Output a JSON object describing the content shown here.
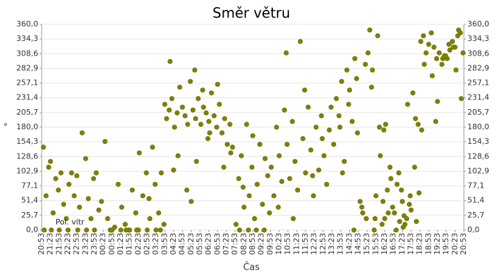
{
  "chart_data": {
    "type": "scatter",
    "title": "Směr větru",
    "x_label": "Čas",
    "y_label": "°",
    "grid": true,
    "xlim": [
      0,
      48
    ],
    "xticks": [
      {
        "value": 0,
        "label": "20:53"
      },
      {
        "value": 1,
        "label": "21:23"
      },
      {
        "value": 2,
        "label": "21:53"
      },
      {
        "value": 3,
        "label": "22:23"
      },
      {
        "value": 4,
        "label": "22:53"
      },
      {
        "value": 5,
        "label": "23:23"
      },
      {
        "value": 6,
        "label": "23:53"
      },
      {
        "value": 7,
        "label": "00:23"
      },
      {
        "value": 8,
        "label": "00:53"
      },
      {
        "value": 9,
        "label": "01:23"
      },
      {
        "value": 10,
        "label": "01:53"
      },
      {
        "value": 11,
        "label": "02:23"
      },
      {
        "value": 12,
        "label": "02:53"
      },
      {
        "value": 13,
        "label": "03:23"
      },
      {
        "value": 14,
        "label": "03:53"
      },
      {
        "value": 15,
        "label": "04:23"
      },
      {
        "value": 16,
        "label": "04:53"
      },
      {
        "value": 17,
        "label": "05:23"
      },
      {
        "value": 18,
        "label": "05:53"
      },
      {
        "value": 19,
        "label": "06:23"
      },
      {
        "value": 20,
        "label": "06:53"
      },
      {
        "value": 21,
        "label": "07:23"
      },
      {
        "value": 22,
        "label": "07:53"
      },
      {
        "value": 23,
        "label": "08:23"
      },
      {
        "value": 24,
        "label": "08:53"
      },
      {
        "value": 25,
        "label": "09:23"
      },
      {
        "value": 26,
        "label": "09:53"
      },
      {
        "value": 27,
        "label": "10:23"
      },
      {
        "value": 28,
        "label": "10:53"
      },
      {
        "value": 29,
        "label": "11:23"
      },
      {
        "value": 30,
        "label": "11:53"
      },
      {
        "value": 31,
        "label": "12:23"
      },
      {
        "value": 32,
        "label": "12:53"
      },
      {
        "value": 33,
        "label": "13:23"
      },
      {
        "value": 34,
        "label": "13:53"
      },
      {
        "value": 35,
        "label": "14:23"
      },
      {
        "value": 36,
        "label": "14:53"
      },
      {
        "value": 37,
        "label": "15:23"
      },
      {
        "value": 38,
        "label": "15:53"
      },
      {
        "value": 39,
        "label": "16:23"
      },
      {
        "value": 40,
        "label": "16:53"
      },
      {
        "value": 41,
        "label": "17:23"
      },
      {
        "value": 42,
        "label": "17:53"
      },
      {
        "value": 43,
        "label": "18:23"
      },
      {
        "value": 44,
        "label": "18:53"
      },
      {
        "value": 45,
        "label": "19:23"
      },
      {
        "value": 46,
        "label": "19:53"
      },
      {
        "value": 47,
        "label": "20:23"
      },
      {
        "value": 48,
        "label": "20:53"
      }
    ],
    "ylim": [
      0,
      360
    ],
    "yticks": [
      {
        "value": 0,
        "label": "0,0"
      },
      {
        "value": 25.7,
        "label": "25,7"
      },
      {
        "value": 51.4,
        "label": "51,4"
      },
      {
        "value": 77.1,
        "label": "77,1"
      },
      {
        "value": 102.9,
        "label": "102,9"
      },
      {
        "value": 128.6,
        "label": "128,6"
      },
      {
        "value": 154.3,
        "label": "154,3"
      },
      {
        "value": 180,
        "label": "180,0"
      },
      {
        "value": 205.7,
        "label": "205,7"
      },
      {
        "value": 231.4,
        "label": "231,4"
      },
      {
        "value": 257.1,
        "label": "257,1"
      },
      {
        "value": 282.9,
        "label": "282,9"
      },
      {
        "value": 308.6,
        "label": "308,6"
      },
      {
        "value": 334.3,
        "label": "334,3"
      },
      {
        "value": 360,
        "label": "360,0"
      }
    ],
    "x": [
      0.2,
      0.5,
      0.8,
      1.0,
      1.3,
      1.6,
      1.9,
      2.2,
      2.5,
      2.8,
      3.1,
      3.4,
      3.7,
      4.0,
      4.3,
      4.6,
      5.0,
      5.3,
      5.6,
      5.9,
      6.2,
      6.5,
      6.8,
      0.3,
      1.1,
      2.0,
      3.0,
      4.1,
      5.1,
      6.0,
      7.2,
      7.5,
      7.9,
      8.3,
      8.7,
      9.1,
      9.5,
      9.9,
      10.3,
      10.7,
      11.1,
      11.5,
      11.9,
      12.3,
      12.6,
      12.9,
      13.3,
      13.6,
      7.8,
      9.0,
      10.0,
      11.0,
      12.0,
      13.0,
      13.9,
      8.0,
      9.6,
      10.8,
      12.2,
      13.5,
      14.0,
      14.2,
      14.5,
      14.8,
      15.1,
      15.4,
      15.7,
      16.0,
      16.3,
      16.6,
      16.9,
      17.2,
      17.5,
      17.8,
      18.1,
      18.4,
      18.7,
      19.0,
      19.3,
      19.6,
      19.9,
      20.2,
      20.5,
      20.8,
      21.1,
      21.4,
      21.7,
      14.6,
      15.5,
      16.5,
      17.0,
      17.6,
      18.3,
      19.1,
      20.0,
      20.7,
      21.5,
      15.0,
      17.4,
      18.9,
      22.1,
      22.4,
      22.7,
      23.0,
      23.3,
      23.6,
      23.9,
      24.2,
      24.5,
      24.8,
      25.1,
      25.4,
      25.7,
      22.5,
      23.5,
      24.4,
      25.3,
      25.9,
      22.9,
      24.0,
      26.1,
      26.4,
      26.7,
      27.0,
      27.3,
      27.6,
      27.9,
      28.2,
      28.5,
      28.8,
      29.1,
      29.4,
      29.7,
      30.0,
      30.3,
      30.6,
      30.9,
      31.2,
      31.5,
      31.8,
      32.1,
      32.4,
      32.7,
      26.9,
      27.8,
      28.6,
      29.9,
      30.8,
      31.9,
      32.9,
      33.2,
      33.5,
      33.8,
      34.1,
      34.4,
      34.7,
      35.0,
      35.3,
      35.6,
      35.9,
      36.2,
      36.5,
      36.8,
      33.9,
      34.9,
      35.8,
      36.4,
      34.2,
      35.5,
      36.9,
      37.1,
      37.3,
      37.6,
      37.9,
      38.2,
      38.5,
      38.8,
      39.1,
      39.4,
      39.7,
      37.5,
      38.0,
      38.7,
      39.3,
      39.9,
      38.4,
      37.8,
      39.0,
      39.6,
      38.9,
      40.1,
      40.4,
      40.7,
      41.0,
      41.3,
      41.6,
      41.9,
      42.2,
      42.5,
      42.8,
      40.6,
      41.2,
      41.8,
      42.4,
      40.3,
      41.5,
      42.0,
      42.9,
      41.1,
      40.9,
      43.1,
      43.4,
      43.7,
      44.0,
      44.3,
      44.6,
      44.9,
      45.2,
      45.5,
      45.8,
      46.1,
      46.4,
      46.7,
      47.0,
      47.3,
      47.6,
      47.9,
      43.5,
      44.4,
      45.0,
      45.6,
      46.3,
      47.1,
      47.7,
      44.8,
      46.8,
      43.2,
      47.4,
      45.9,
      42.6
    ],
    "series": [
      {
        "name": "Pol. vítr",
        "color": "#808000",
        "values": [
          145,
          60,
          110,
          120,
          30,
          90,
          70,
          100,
          45,
          20,
          80,
          100,
          60,
          95,
          40,
          170,
          125,
          55,
          20,
          90,
          100,
          35,
          50,
          0,
          0,
          0,
          0,
          0,
          0,
          0,
          155,
          20,
          0,
          5,
          80,
          40,
          10,
          0,
          70,
          30,
          135,
          60,
          100,
          20,
          145,
          80,
          30,
          100,
          0,
          0,
          0,
          0,
          0,
          0,
          10,
          0,
          0,
          0,
          55,
          0,
          220,
          195,
          210,
          230,
          180,
          205,
          250,
          215,
          200,
          185,
          260,
          210,
          195,
          230,
          185,
          215,
          205,
          190,
          240,
          200,
          180,
          220,
          170,
          195,
          150,
          185,
          145,
          295,
          130,
          70,
          50,
          120,
          245,
          170,
          255,
          110,
          135,
          105,
          280,
          160,
          10,
          90,
          130,
          40,
          185,
          60,
          110,
          20,
          80,
          150,
          45,
          125,
          95,
          0,
          0,
          0,
          0,
          30,
          75,
          165,
          110,
          60,
          180,
          130,
          85,
          210,
          150,
          90,
          190,
          120,
          70,
          330,
          160,
          100,
          215,
          140,
          60,
          180,
          105,
          200,
          130,
          80,
          175,
          40,
          310,
          20,
          245,
          95,
          160,
          215,
          150,
          230,
          200,
          260,
          120,
          280,
          245,
          190,
          300,
          170,
          50,
          30,
          290,
          180,
          220,
          265,
          40,
          100,
          0,
          20,
          310,
          350,
          280,
          20,
          340,
          130,
          50,
          185,
          30,
          90,
          250,
          60,
          10,
          70,
          40,
          180,
          0,
          20,
          110,
          175,
          30,
          80,
          15,
          50,
          10,
          220,
          60,
          240,
          195,
          185,
          100,
          25,
          45,
          110,
          0,
          20,
          35,
          65,
          5,
          70,
          330,
          340,
          310,
          325,
          345,
          320,
          300,
          310,
          290,
          305,
          300,
          315,
          330,
          320,
          340,
          345,
          310,
          290,
          270,
          225,
          300,
          325,
          280,
          230,
          190,
          320,
          175,
          350,
          305,
          15
        ]
      }
    ]
  }
}
